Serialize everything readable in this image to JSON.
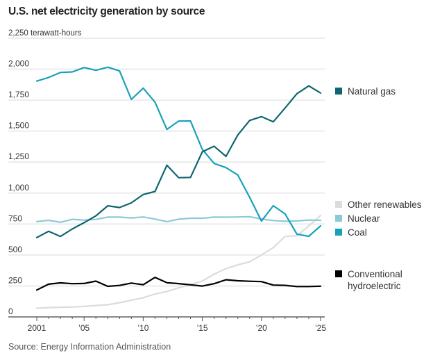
{
  "header": {
    "title": "U.S. net electricity generation by source"
  },
  "footer": {
    "source": "Source: Energy Information Administration"
  },
  "chart_data": {
    "type": "line",
    "title": "U.S. net electricity generation by source",
    "ylabel": "terawatt-hours",
    "xlabel": "",
    "unit_label": "terawatt-hours",
    "ylim": [
      0,
      2250
    ],
    "xlim": [
      2001,
      2025
    ],
    "grid": true,
    "legend_placement": "right",
    "y_ticks": [
      0,
      250,
      500,
      750,
      1000,
      1250,
      1500,
      1750,
      2000,
      2250
    ],
    "y_tick_labels": [
      "0",
      "250",
      "500",
      "750",
      "1,000",
      "1,250",
      "1,500",
      "1,750",
      "2,000",
      "2,250"
    ],
    "x_ticks": [
      2001,
      2005,
      2010,
      2015,
      2020,
      2025
    ],
    "x_tick_labels": [
      "2001",
      "’05",
      "’10",
      "’15",
      "’20",
      "’25"
    ],
    "x": [
      2001,
      2002,
      2003,
      2004,
      2005,
      2006,
      2007,
      2008,
      2009,
      2010,
      2011,
      2012,
      2013,
      2014,
      2015,
      2016,
      2017,
      2018,
      2019,
      2020,
      2021,
      2022,
      2023,
      2024,
      2025
    ],
    "series": [
      {
        "name": "Other renewables",
        "color": "#dcdcdc",
        "values": [
          70,
          75,
          78,
          80,
          85,
          92,
          98,
          115,
          135,
          155,
          185,
          205,
          235,
          260,
          290,
          345,
          390,
          420,
          445,
          500,
          560,
          650,
          655,
          735,
          820
        ]
      },
      {
        "name": "Conventional hydroelectric",
        "color": "#000000",
        "values": [
          217,
          264,
          275,
          268,
          270,
          289,
          247,
          254,
          273,
          260,
          319,
          276,
          269,
          259,
          249,
          268,
          300,
          292,
          288,
          285,
          257,
          255,
          245,
          245,
          248
        ]
      },
      {
        "name": "Nuclear",
        "color": "#8ccad6",
        "values": [
          769,
          780,
          764,
          788,
          782,
          787,
          806,
          806,
          799,
          807,
          790,
          769,
          789,
          797,
          797,
          806,
          805,
          807,
          809,
          790,
          778,
          772,
          775,
          782,
          780
        ]
      },
      {
        "name": "Coal",
        "color": "#17a2b8",
        "values": [
          1904,
          1933,
          1974,
          1978,
          2013,
          1991,
          2016,
          1986,
          1756,
          1847,
          1733,
          1514,
          1581,
          1582,
          1352,
          1239,
          1205,
          1146,
          965,
          774,
          898,
          831,
          668,
          651,
          735
        ]
      },
      {
        "name": "Natural gas",
        "color": "#0d6670",
        "values": [
          640,
          691,
          650,
          710,
          761,
          816,
          897,
          883,
          921,
          988,
          1013,
          1225,
          1124,
          1126,
          1333,
          1378,
          1296,
          1469,
          1586,
          1617,
          1575,
          1687,
          1802,
          1865,
          1808
        ]
      }
    ],
    "legend": [
      {
        "label": "Natural gas",
        "color": "#0d6670"
      },
      {
        "label": "Other renewables",
        "color": "#dcdcdc"
      },
      {
        "label": "Nuclear",
        "color": "#8ccad6"
      },
      {
        "label": "Coal",
        "color": "#17a2b8"
      },
      {
        "label": "Conventional hydroelectric",
        "label_lines": [
          "Conventional",
          "hydroelectric"
        ],
        "color": "#000000"
      }
    ]
  }
}
